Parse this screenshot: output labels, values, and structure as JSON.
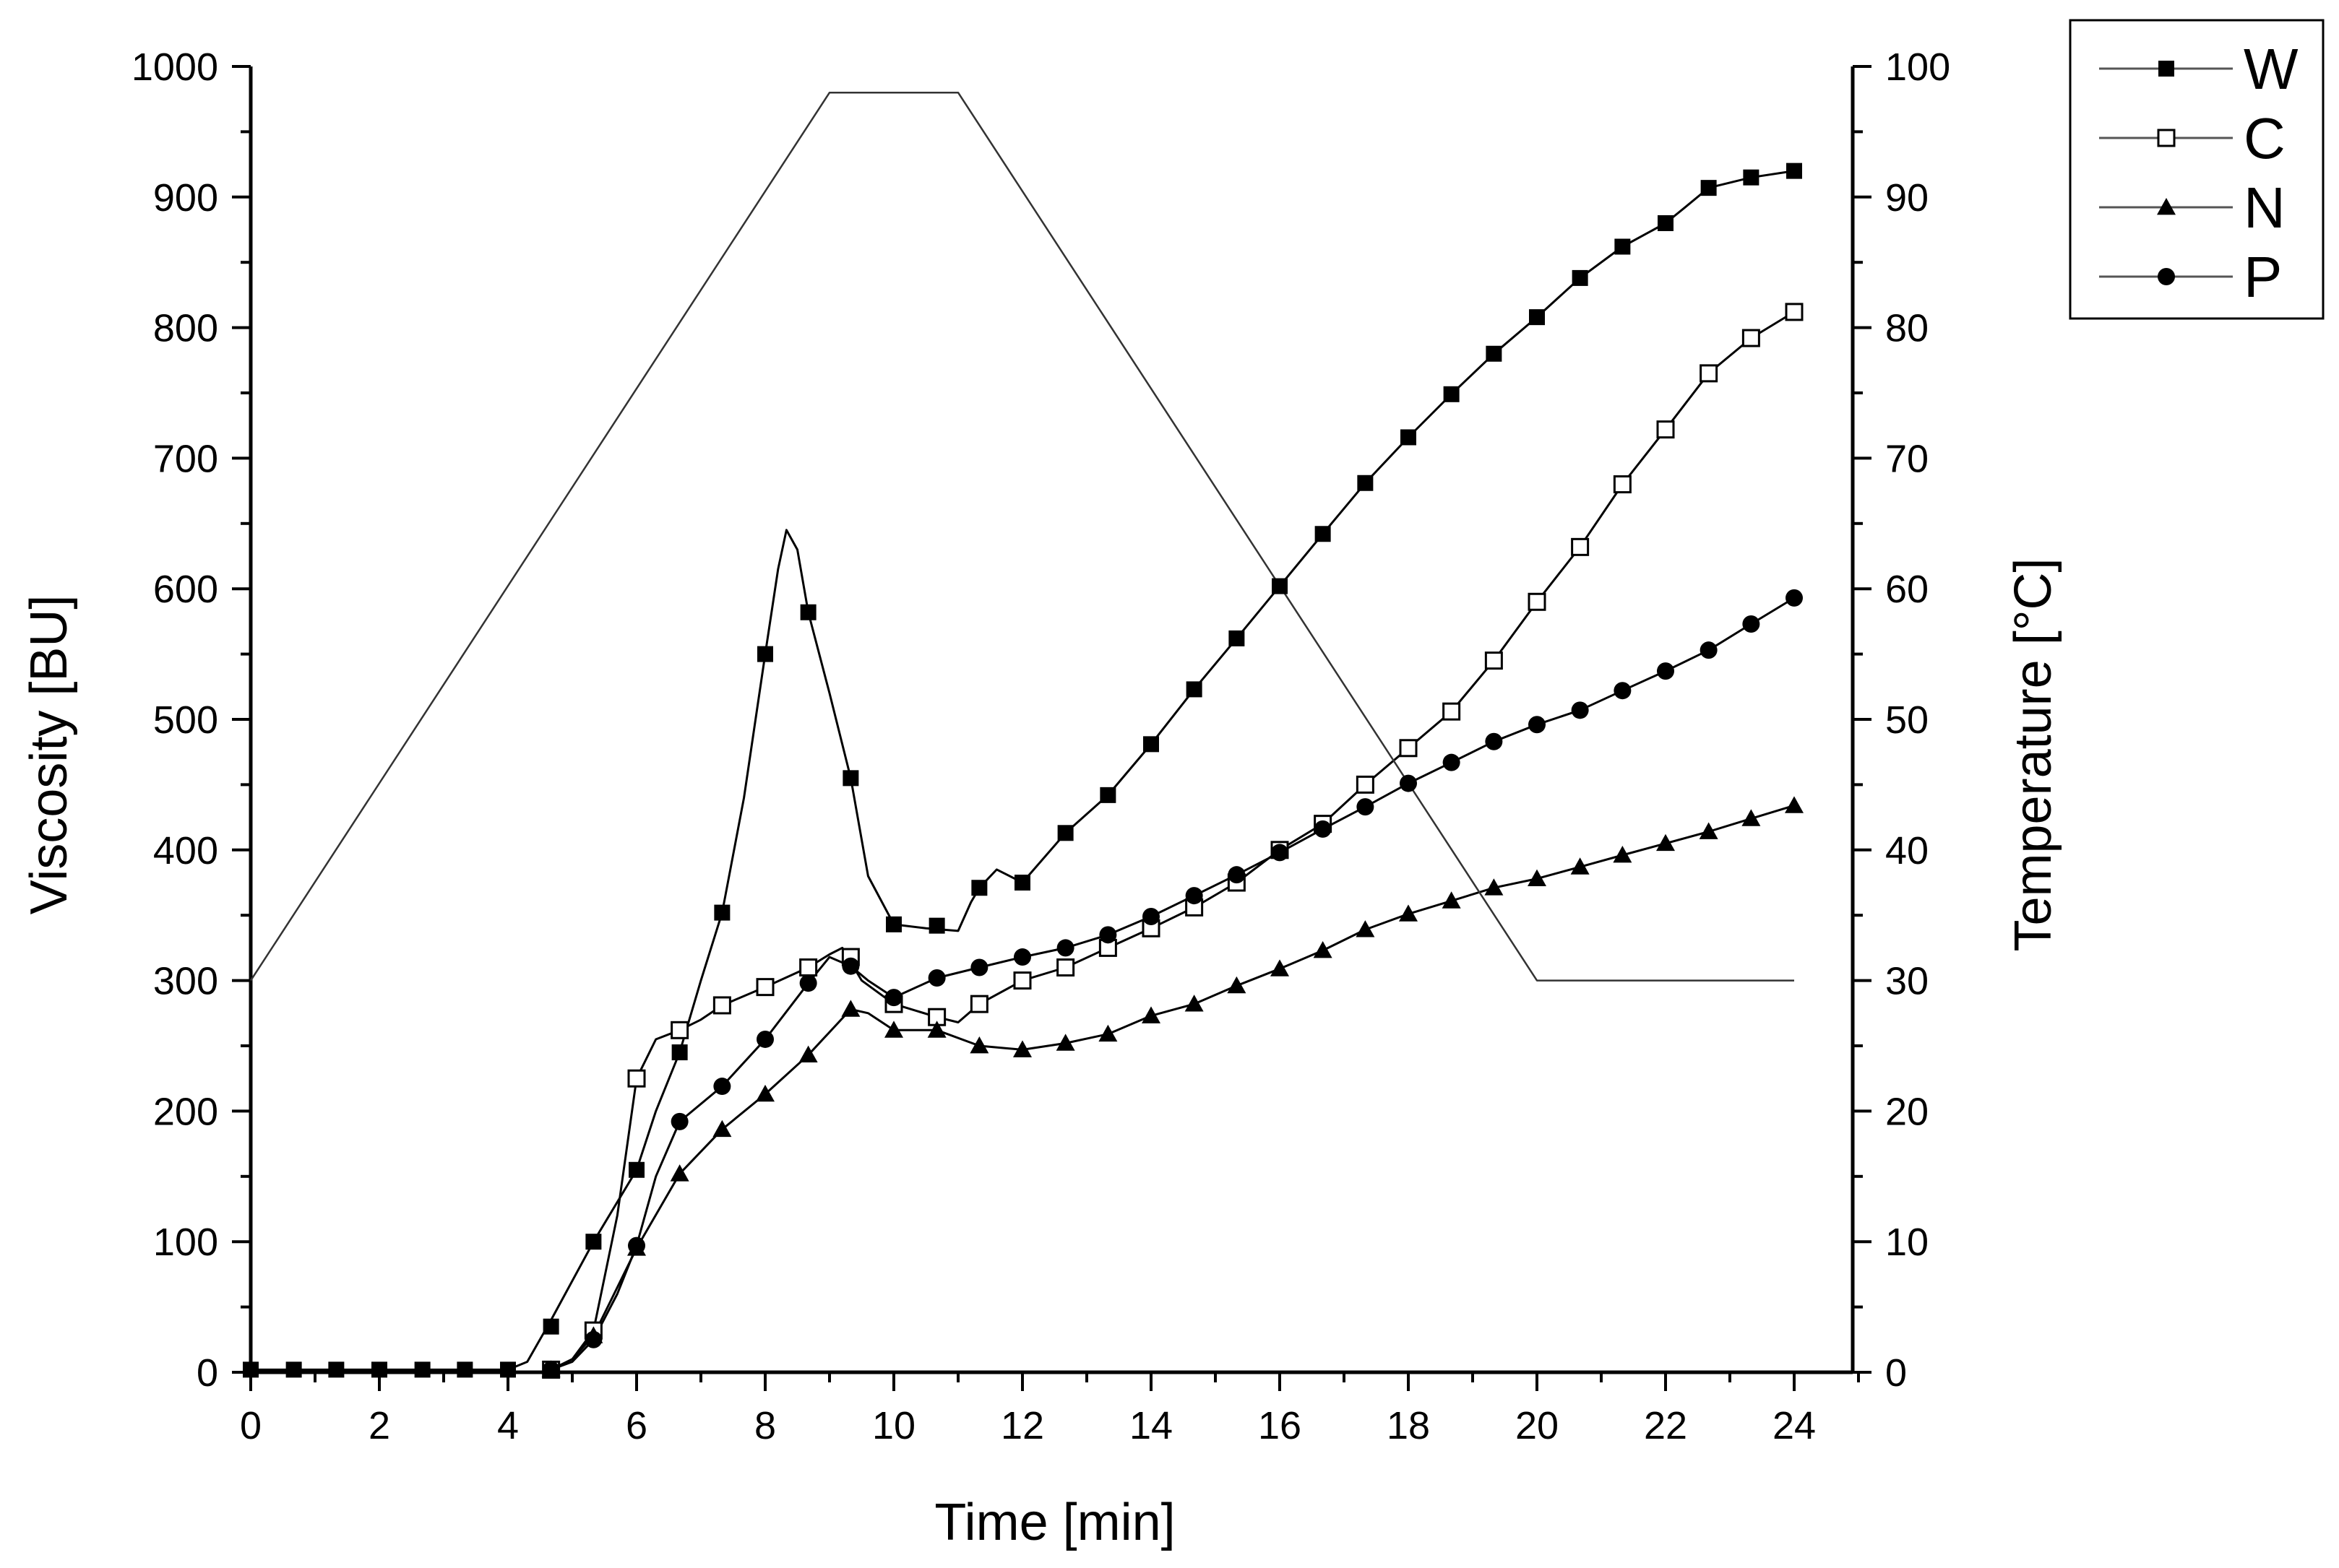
{
  "chart_data": {
    "type": "line",
    "title": "",
    "xlabel": "Time [min]",
    "ylabel": "Viscosity [BU]",
    "y2label": "Temperature [°C]",
    "xlim": [
      0,
      25
    ],
    "ylim": [
      0,
      1000
    ],
    "y2lim": [
      0,
      100
    ],
    "xticks": [
      0,
      2,
      4,
      6,
      8,
      10,
      12,
      14,
      16,
      18,
      20,
      22,
      24
    ],
    "yticks": [
      0,
      100,
      200,
      300,
      400,
      500,
      600,
      700,
      800,
      900,
      1000
    ],
    "y2ticks": [
      0,
      10,
      20,
      30,
      40,
      50,
      60,
      70,
      80,
      90,
      100
    ],
    "legend_position": "top-right",
    "legend": [
      "W",
      "C",
      "N",
      "P"
    ],
    "series": [
      {
        "name": "W",
        "marker": "filled-square",
        "x": [
          0,
          0.67,
          1.33,
          2,
          2.67,
          3.33,
          4,
          4.67,
          5.33,
          6,
          6.67,
          7.33,
          8,
          8.67,
          9.33,
          10,
          10.67,
          11.33,
          12,
          12.67,
          13.33,
          14,
          14.67,
          15.33,
          16,
          16.67,
          17.33,
          18,
          18.67,
          19.33,
          20,
          20.67,
          21.33,
          22,
          22.67,
          23.33,
          24
        ],
        "values": [
          2,
          2,
          2,
          2,
          2,
          2,
          2,
          35,
          100,
          155,
          245,
          352,
          550,
          582,
          455,
          343,
          342,
          371,
          375,
          413,
          442,
          481,
          523,
          562,
          602,
          642,
          681,
          716,
          749,
          780,
          808,
          838,
          862,
          880,
          907,
          915,
          920
        ],
        "curve": {
          "x": [
            0,
            4,
            4.3,
            4.67,
            5.33,
            6,
            6.3,
            6.67,
            7,
            7.33,
            7.67,
            8,
            8.2,
            8.33,
            8.5,
            8.67,
            9,
            9.33,
            9.6,
            10,
            10.5,
            11,
            11.2,
            11.33,
            11.6,
            12,
            12.67,
            13.33,
            14,
            14.67,
            15.33,
            16,
            16.67,
            17.33,
            18,
            18.67,
            19.33,
            20,
            20.67,
            21.33,
            22,
            22.3,
            22.67,
            23.33,
            24
          ],
          "y": [
            2,
            2,
            8,
            40,
            100,
            155,
            200,
            245,
            300,
            352,
            440,
            550,
            615,
            645,
            630,
            582,
            520,
            455,
            380,
            343,
            340,
            338,
            360,
            371,
            385,
            375,
            413,
            442,
            481,
            523,
            562,
            602,
            642,
            681,
            716,
            749,
            780,
            808,
            838,
            862,
            880,
            892,
            907,
            915,
            920
          ]
        }
      },
      {
        "name": "C",
        "marker": "open-square",
        "x": [
          4.67,
          5.33,
          6,
          6.67,
          7.33,
          8,
          8.67,
          9.33,
          10,
          10.67,
          11.33,
          12,
          12.67,
          13.33,
          14,
          14.67,
          15.33,
          16,
          16.67,
          17.33,
          18,
          18.67,
          19.33,
          20,
          20.67,
          21.33,
          22,
          22.67,
          23.33,
          24
        ],
        "values": [
          2,
          32,
          225,
          262,
          281,
          295,
          310,
          318,
          282,
          272,
          282,
          300,
          310,
          325,
          340,
          356,
          375,
          400,
          420,
          450,
          478,
          506,
          545,
          590,
          632,
          680,
          722,
          765,
          792,
          812
        ],
        "curve": {
          "x": [
            4.5,
            4.67,
            5,
            5.33,
            5.7,
            6,
            6.3,
            6.67,
            7,
            7.33,
            8,
            8.67,
            9,
            9.2,
            9.5,
            10,
            10.67,
            11,
            11.33,
            12,
            12.67,
            13.33,
            14,
            14.67,
            15.33,
            16,
            16.67,
            17.33,
            18,
            18.67,
            19.33,
            20,
            20.67,
            21.33,
            22,
            22.67,
            23.33,
            24
          ],
          "y": [
            0,
            2,
            10,
            32,
            120,
            225,
            255,
            262,
            270,
            281,
            295,
            310,
            320,
            325,
            300,
            282,
            272,
            268,
            282,
            300,
            310,
            325,
            340,
            356,
            375,
            400,
            420,
            450,
            478,
            506,
            545,
            590,
            632,
            680,
            722,
            765,
            792,
            812
          ]
        }
      },
      {
        "name": "N",
        "marker": "filled-triangle",
        "x": [
          4.67,
          5.33,
          6,
          6.67,
          7.33,
          8,
          8.67,
          9.33,
          10,
          10.67,
          11.33,
          12,
          12.67,
          13.33,
          14,
          14.67,
          15.33,
          16,
          16.67,
          17.33,
          18,
          18.67,
          19.33,
          20,
          20.67,
          21.33,
          22,
          22.67,
          23.33,
          24
        ],
        "values": [
          2,
          28,
          95,
          152,
          186,
          213,
          243,
          278,
          262,
          262,
          250,
          247,
          252,
          259,
          273,
          282,
          296,
          309,
          323,
          339,
          351,
          361,
          371,
          378,
          387,
          396,
          405,
          414,
          424,
          434
        ],
        "curve": {
          "x": [
            4.5,
            4.67,
            5,
            5.33,
            5.7,
            6,
            6.67,
            7.33,
            8,
            8.67,
            9.33,
            9.6,
            10,
            10.67,
            11.33,
            12,
            12.67,
            13.33,
            14,
            14.67,
            15.33,
            16,
            16.67,
            17.33,
            18,
            18.67,
            19.33,
            20,
            20.67,
            21.33,
            22,
            22.67,
            23.33,
            24
          ],
          "y": [
            0,
            2,
            10,
            28,
            65,
            95,
            152,
            186,
            213,
            243,
            278,
            275,
            262,
            262,
            250,
            247,
            252,
            259,
            273,
            282,
            296,
            309,
            323,
            339,
            351,
            361,
            371,
            378,
            387,
            396,
            405,
            414,
            424,
            434
          ]
        }
      },
      {
        "name": "P",
        "marker": "filled-circle",
        "x": [
          4.67,
          5.33,
          6,
          6.67,
          7.33,
          8,
          8.67,
          9.33,
          10,
          10.67,
          11.33,
          12,
          12.67,
          13.33,
          14,
          14.67,
          15.33,
          16,
          16.67,
          17.33,
          18,
          18.67,
          19.33,
          20,
          20.67,
          21.33,
          22,
          22.67,
          23.33,
          24
        ],
        "values": [
          2,
          25,
          97,
          192,
          219,
          255,
          298,
          311,
          287,
          302,
          310,
          318,
          325,
          335,
          349,
          365,
          381,
          398,
          416,
          433,
          451,
          467,
          483,
          496,
          507,
          522,
          537,
          553,
          573,
          593
        ],
        "curve": {
          "x": [
            4.5,
            4.67,
            5,
            5.33,
            5.7,
            6,
            6.3,
            6.67,
            7.33,
            8,
            8.67,
            9,
            9.33,
            9.6,
            10,
            10.67,
            11.33,
            12,
            12.67,
            13.33,
            14,
            14.67,
            15.33,
            16,
            16.67,
            17.33,
            18,
            18.67,
            19.33,
            20,
            20.67,
            21.33,
            22,
            22.67,
            23.33,
            24
          ],
          "y": [
            0,
            2,
            8,
            25,
            60,
            97,
            150,
            192,
            219,
            255,
            298,
            318,
            311,
            300,
            287,
            302,
            310,
            318,
            325,
            335,
            349,
            365,
            381,
            398,
            416,
            433,
            451,
            467,
            483,
            496,
            507,
            522,
            537,
            553,
            573,
            593
          ]
        }
      },
      {
        "name": "Temperature",
        "axis": "right",
        "marker": "none",
        "x": [
          0,
          9,
          11,
          20,
          24
        ],
        "values": [
          30,
          98,
          98,
          30,
          30
        ]
      }
    ]
  },
  "colors": {
    "line": "#000000",
    "background": "#ffffff",
    "legend_line": "#555555"
  }
}
